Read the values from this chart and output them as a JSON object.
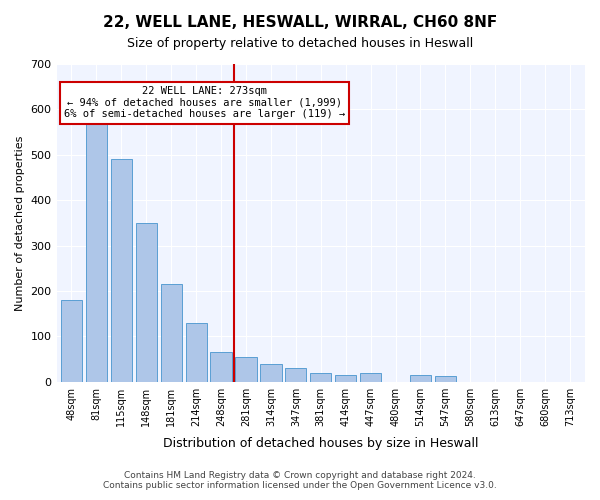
{
  "title": "22, WELL LANE, HESWALL, WIRRAL, CH60 8NF",
  "subtitle": "Size of property relative to detached houses in Heswall",
  "xlabel": "Distribution of detached houses by size in Heswall",
  "ylabel": "Number of detached properties",
  "footer1": "Contains HM Land Registry data © Crown copyright and database right 2024.",
  "footer2": "Contains public sector information licensed under the Open Government Licence v3.0.",
  "categories": [
    "48sqm",
    "81sqm",
    "115sqm",
    "148sqm",
    "181sqm",
    "214sqm",
    "248sqm",
    "281sqm",
    "314sqm",
    "347sqm",
    "381sqm",
    "414sqm",
    "447sqm",
    "480sqm",
    "514sqm",
    "547sqm",
    "580sqm",
    "613sqm",
    "647sqm",
    "680sqm",
    "713sqm"
  ],
  "values": [
    180,
    580,
    490,
    350,
    215,
    130,
    65,
    55,
    40,
    30,
    20,
    15,
    18,
    0,
    15,
    13,
    0,
    0,
    0,
    0,
    0
  ],
  "bar_color": "#aec6e8",
  "bar_edge_color": "#5a9fd4",
  "ref_line_x": 7,
  "ref_line_label": "22 WELL LANE: 273sqm",
  "annotation_line1": "← 94% of detached houses are smaller (1,999)",
  "annotation_line2": "6% of semi-detached houses are larger (119) →",
  "ref_line_color": "#cc0000",
  "annotation_box_color": "#cc0000",
  "background_color": "#f0f4ff",
  "ylim": [
    0,
    700
  ],
  "yticks": [
    0,
    100,
    200,
    300,
    400,
    500,
    600,
    700
  ]
}
